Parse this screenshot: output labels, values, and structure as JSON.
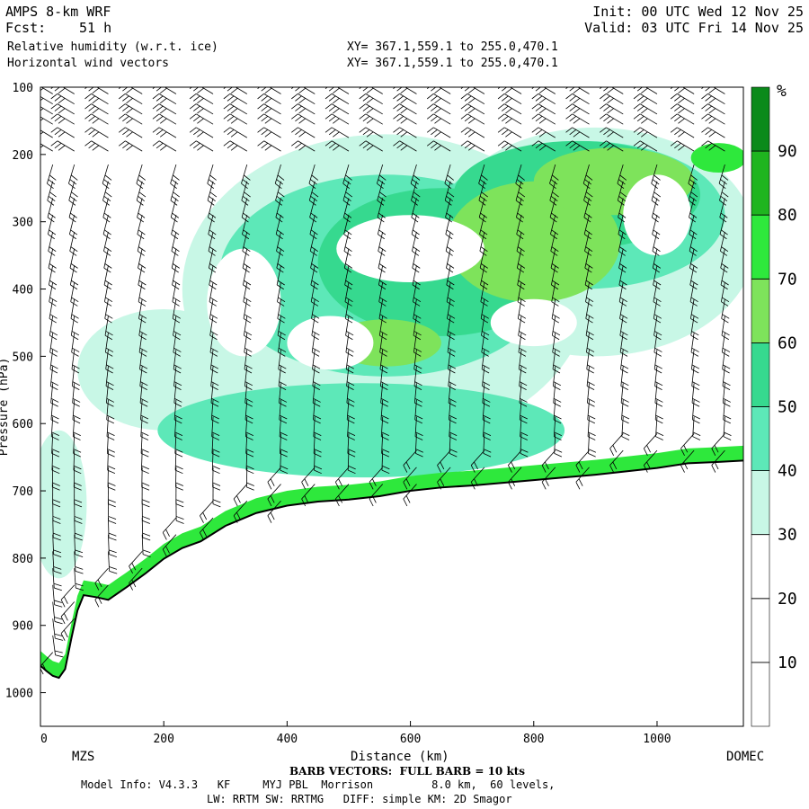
{
  "header": {
    "model": "AMPS 8-km WRF",
    "forecast_label": "Fcst:",
    "forecast_value": "51 h",
    "init": "Init: 00 UTC Wed 12 Nov 25",
    "valid": "Valid: 03 UTC Fri 14 Nov 25",
    "field1": "Relative humidity (w.r.t. ice)",
    "field2": "Horizontal wind vectors",
    "xy1": "XY= 367.1,559.1 to 255.0,470.1",
    "xy2": "XY= 367.1,559.1 to 255.0,470.1"
  },
  "footer": {
    "start_label": "MZS",
    "end_label": "DOMEC",
    "barb_note": "BARB VECTORS:  FULL BARB = 10 kts",
    "model_info": "Model Info: V4.3.3   KF     MYJ PBL  Morrison         8.0 km,  60 levels,",
    "model_info2": "LW: RRTM SW: RRTMG   DIFF: simple KM: 2D Smagor"
  },
  "chart_data": {
    "type": "heatmap",
    "title": "Relative humidity (w.r.t. ice) and horizontal wind vectors cross-section",
    "xlabel": "Distance (km)",
    "ylabel": "Pressure (hPa)",
    "xlim": [
      0,
      1140
    ],
    "ylim": [
      1050,
      100
    ],
    "x_ticks": [
      0,
      200,
      400,
      600,
      800,
      1000
    ],
    "x_tick_labels": [
      "0",
      "200",
      "400",
      "600",
      "800",
      "1000"
    ],
    "y_ticks": [
      100,
      200,
      300,
      400,
      500,
      600,
      700,
      800,
      900,
      1000
    ],
    "y_tick_labels": [
      "100",
      "200",
      "300",
      "400",
      "500",
      "600",
      "700",
      "800",
      "900",
      "1000"
    ],
    "colorbar": {
      "unit": "%",
      "levels": [
        0,
        10,
        20,
        30,
        40,
        50,
        60,
        70,
        80,
        90,
        100
      ],
      "labels": [
        "10",
        "20",
        "30",
        "40",
        "50",
        "60",
        "70",
        "80",
        "90"
      ],
      "colors": [
        "#ffffff",
        "#ffffff",
        "#ffffff",
        "#c8f7e6",
        "#5de8b8",
        "#36d98f",
        "#7ee35b",
        "#2ee83c",
        "#1fb51f",
        "#0a8a1a"
      ]
    },
    "terrain": [
      {
        "x": 0,
        "p": 960
      },
      {
        "x": 10,
        "p": 968
      },
      {
        "x": 20,
        "p": 975
      },
      {
        "x": 30,
        "p": 978
      },
      {
        "x": 40,
        "p": 965
      },
      {
        "x": 50,
        "p": 920
      },
      {
        "x": 60,
        "p": 878
      },
      {
        "x": 70,
        "p": 855
      },
      {
        "x": 90,
        "p": 858
      },
      {
        "x": 110,
        "p": 862
      },
      {
        "x": 140,
        "p": 843
      },
      {
        "x": 170,
        "p": 823
      },
      {
        "x": 200,
        "p": 801
      },
      {
        "x": 230,
        "p": 785
      },
      {
        "x": 260,
        "p": 775
      },
      {
        "x": 300,
        "p": 752
      },
      {
        "x": 350,
        "p": 733
      },
      {
        "x": 400,
        "p": 722
      },
      {
        "x": 450,
        "p": 716
      },
      {
        "x": 500,
        "p": 713
      },
      {
        "x": 550,
        "p": 708
      },
      {
        "x": 600,
        "p": 700
      },
      {
        "x": 650,
        "p": 695
      },
      {
        "x": 700,
        "p": 692
      },
      {
        "x": 800,
        "p": 684
      },
      {
        "x": 900,
        "p": 676
      },
      {
        "x": 1000,
        "p": 666
      },
      {
        "x": 1050,
        "p": 659
      },
      {
        "x": 1100,
        "p": 657
      },
      {
        "x": 1140,
        "p": 655
      }
    ],
    "rh_regions": [
      {
        "level": 30,
        "cx": 560,
        "cp": 400,
        "rx": 330,
        "rp": 230
      },
      {
        "level": 30,
        "cx": 900,
        "cp": 330,
        "rx": 260,
        "rp": 170
      },
      {
        "level": 30,
        "cx": 30,
        "cp": 720,
        "rx": 45,
        "rp": 110
      },
      {
        "level": 30,
        "cx": 200,
        "cp": 520,
        "rx": 140,
        "rp": 90
      },
      {
        "level": 40,
        "cx": 560,
        "cp": 380,
        "rx": 270,
        "rp": 150
      },
      {
        "level": 40,
        "cx": 880,
        "cp": 290,
        "rx": 230,
        "rp": 110
      },
      {
        "level": 40,
        "cx": 520,
        "cp": 610,
        "rx": 330,
        "rp": 70
      },
      {
        "level": 50,
        "cx": 650,
        "cp": 360,
        "rx": 200,
        "rp": 110
      },
      {
        "level": 50,
        "cx": 870,
        "cp": 260,
        "rx": 200,
        "rp": 80
      },
      {
        "level": 60,
        "cx": 800,
        "cp": 330,
        "rx": 140,
        "rp": 90
      },
      {
        "level": 60,
        "cx": 930,
        "cp": 240,
        "rx": 130,
        "rp": 50
      },
      {
        "level": 70,
        "cx": 1100,
        "cp": 205,
        "rx": 45,
        "rp": 22
      },
      {
        "level": 60,
        "cx": 560,
        "cp": 480,
        "rx": 90,
        "rp": 35
      }
    ],
    "rh_clear_holes": [
      {
        "cx": 600,
        "cp": 340,
        "rx": 120,
        "rp": 50
      },
      {
        "cx": 800,
        "cp": 450,
        "rx": 70,
        "rp": 35
      },
      {
        "cx": 470,
        "cp": 480,
        "rx": 70,
        "rp": 40
      },
      {
        "cx": 1000,
        "cp": 290,
        "rx": 55,
        "rp": 60
      },
      {
        "cx": 330,
        "cp": 420,
        "rx": 60,
        "rp": 80
      }
    ],
    "surface_band": {
      "level": 70,
      "thickness_hpa": 22
    },
    "barb_columns_x": [
      20,
      55,
      110,
      165,
      220,
      280,
      335,
      390,
      445,
      500,
      555,
      610,
      665,
      720,
      780,
      835,
      890,
      945,
      1000,
      1060,
      1110
    ],
    "barb_levels_p": [
      110,
      125,
      140,
      155,
      175,
      195,
      215,
      240,
      265,
      290,
      315,
      340,
      365,
      390,
      415,
      440,
      465,
      490,
      515,
      540,
      565,
      590,
      615,
      640,
      665,
      690,
      715,
      740,
      765,
      790,
      815,
      840,
      865,
      890,
      915,
      940
    ],
    "barb_full_kts": 10
  }
}
